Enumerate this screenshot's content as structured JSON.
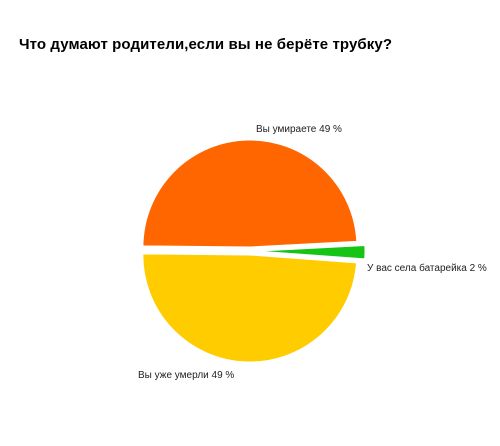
{
  "chart_data": {
    "type": "pie",
    "title": "Что думают родители,если вы не берёте трубку?",
    "slices": [
      {
        "label": "Вы умираете 49 %",
        "value": 49,
        "color": "#ff6600"
      },
      {
        "label": "У вас села батарейка 2 %",
        "value": 2,
        "color": "#16c416"
      },
      {
        "label": "Вы уже умерли 49 %",
        "value": 49,
        "color": "#ffcc00"
      }
    ]
  }
}
